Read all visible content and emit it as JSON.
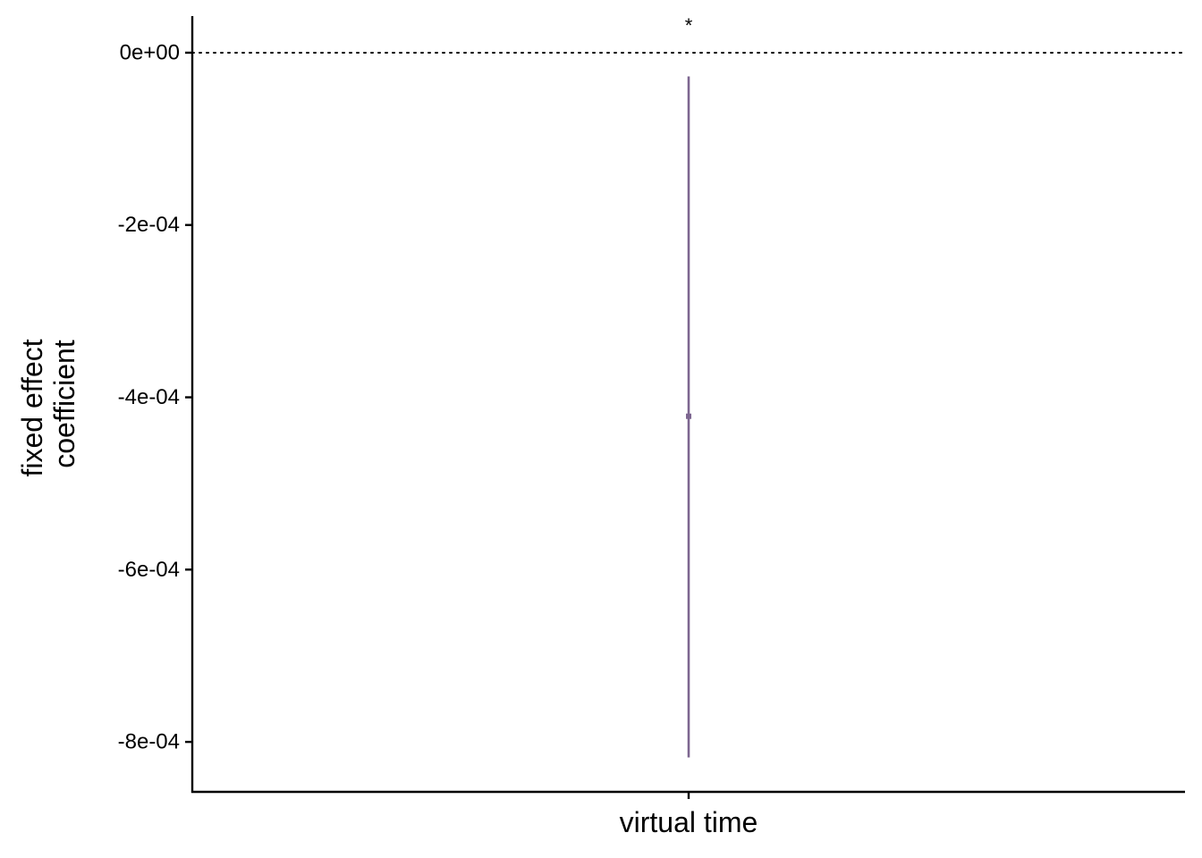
{
  "chart_data": {
    "type": "errorbar",
    "title": "",
    "xlabel": "virtual time",
    "ylabel_lines": [
      "fixed effect",
      "coefficient"
    ],
    "categories": [
      "virtual time"
    ],
    "points": [
      {
        "category": "virtual time",
        "estimate": -0.000422,
        "lower": -0.000818,
        "upper": -2.75e-05,
        "annotation": "*"
      }
    ],
    "yticks": [
      0,
      -0.0002,
      -0.0004,
      -0.0006,
      -0.0008
    ],
    "ytick_labels": [
      "0e+00",
      "-2e-04",
      "-4e-04",
      "-6e-04",
      "-8e-04"
    ],
    "ylim": [
      -0.000858,
      4.25e-05
    ],
    "reference_line": {
      "y": 0,
      "style": "dotted"
    },
    "grid": false,
    "legend": "none",
    "colors": {
      "series": "#7d6690",
      "axis": "#000000",
      "reference": "#000000"
    }
  }
}
